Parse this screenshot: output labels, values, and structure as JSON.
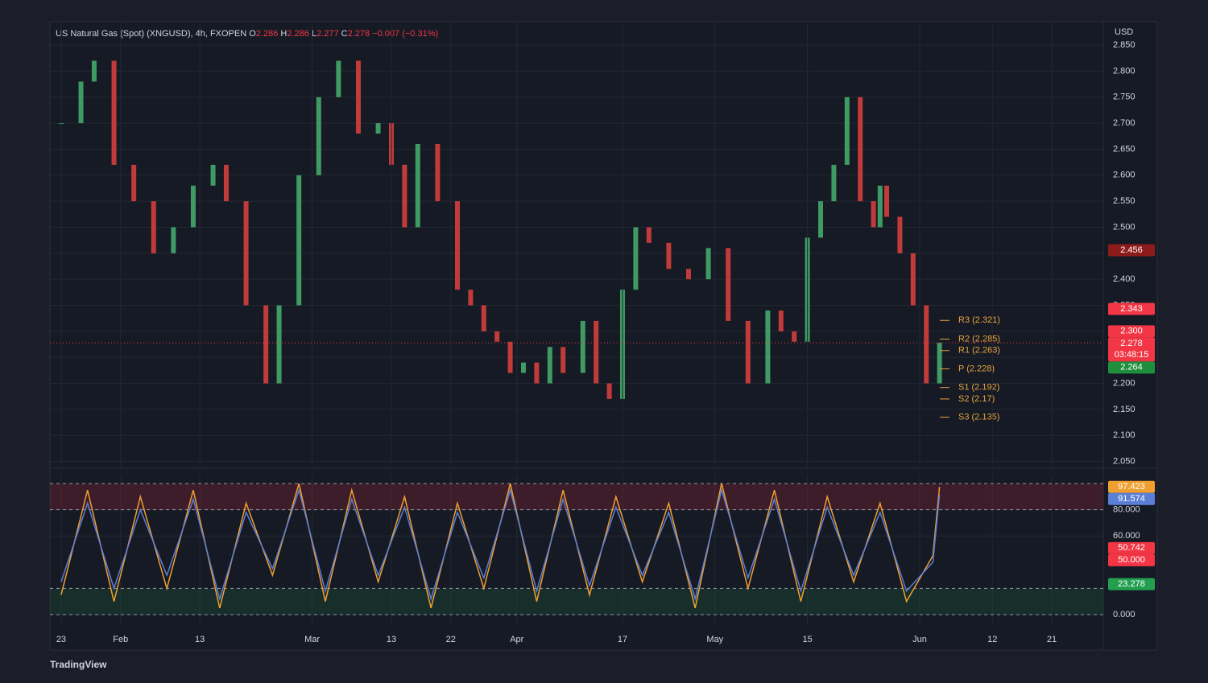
{
  "header": {
    "symbol": "US Natural Gas (Spot) (XNGUSD), 4h, FXOPEN",
    "ohlc": [
      {
        "label": "O",
        "value": 2.286
      },
      {
        "label": "H",
        "value": 2.286
      },
      {
        "label": "L",
        "value": 2.277
      },
      {
        "label": "C",
        "value": 2.278
      }
    ],
    "change": "−0.007 (−0.31%)"
  },
  "chart_data": [
    {
      "type": "candlestick",
      "currency": "USD",
      "x": [
        0,
        3,
        5,
        8,
        11,
        14,
        17,
        20,
        23,
        25,
        28,
        31,
        33,
        36,
        39,
        42,
        45,
        48,
        50,
        52,
        54,
        57,
        60,
        62,
        64,
        66,
        68,
        70,
        72,
        74,
        76,
        79,
        81,
        83,
        85,
        87,
        89,
        92,
        95,
        98,
        101,
        104,
        107,
        109,
        111,
        113,
        115,
        117,
        119,
        121,
        123,
        124,
        125,
        127,
        129,
        131,
        133
      ],
      "values": [
        2.7,
        2.78,
        2.82,
        2.62,
        2.55,
        2.45,
        2.5,
        2.58,
        2.62,
        2.55,
        2.35,
        2.2,
        2.35,
        2.6,
        2.75,
        2.82,
        2.68,
        2.7,
        2.62,
        2.5,
        2.66,
        2.55,
        2.38,
        2.35,
        2.3,
        2.28,
        2.22,
        2.24,
        2.2,
        2.27,
        2.22,
        2.32,
        2.2,
        2.17,
        2.38,
        2.5,
        2.47,
        2.42,
        2.4,
        2.46,
        2.32,
        2.2,
        2.34,
        2.3,
        2.28,
        2.48,
        2.55,
        2.62,
        2.75,
        2.55,
        2.5,
        2.58,
        2.52,
        2.45,
        2.35,
        2.2,
        2.278
      ],
      "up_color": "#3f9a63",
      "down_color": "#c23b3b",
      "xlim": [
        -1.7,
        157.8
      ],
      "ylim": [
        2.04,
        2.895
      ],
      "yticks": [
        {
          "value": 2.05,
          "label": "2.050"
        },
        {
          "value": 2.1,
          "label": "2.100"
        },
        {
          "value": 2.15,
          "label": "2.150"
        },
        {
          "value": 2.2,
          "label": "2.200"
        },
        {
          "value": 2.25,
          "label": "2.250"
        },
        {
          "value": 2.3,
          "label": "2.300"
        },
        {
          "value": 2.35,
          "label": "2.350"
        },
        {
          "value": 2.4,
          "label": "2.400"
        },
        {
          "value": 2.45,
          "label": "2.450"
        },
        {
          "value": 2.5,
          "label": "2.500"
        },
        {
          "value": 2.55,
          "label": "2.550"
        },
        {
          "value": 2.6,
          "label": "2.600"
        },
        {
          "value": 2.65,
          "label": "2.650"
        },
        {
          "value": 2.7,
          "label": "2.700"
        },
        {
          "value": 2.75,
          "label": "2.750"
        },
        {
          "value": 2.8,
          "label": "2.800"
        },
        {
          "value": 2.85,
          "label": "2.850"
        }
      ],
      "last_label": {
        "color": "#f23645",
        "countdown": "03:48:15"
      },
      "price_labels": [
        {
          "value": 2.456,
          "color": "#8e1b1b"
        },
        {
          "value": 2.343,
          "color": "#f23645"
        },
        {
          "value": 2.3,
          "label": "2.300",
          "color": "#f23645"
        },
        {
          "value": 2.264,
          "color": "#1f8f3e"
        }
      ],
      "pivot_color": "#e8a33d",
      "pivots": [
        {
          "value": 2.321,
          "label": "R3 (2.321)"
        },
        {
          "value": 2.285,
          "label": "R2 (2.285)"
        },
        {
          "value": 2.263,
          "label": "R1 (2.263)"
        },
        {
          "value": 2.228,
          "label": "P (2.228)"
        },
        {
          "value": 2.192,
          "label": "S1 (2.192)"
        },
        {
          "value": 2.17,
          "label": "S2 (2.17)"
        },
        {
          "value": 2.135,
          "label": "S3 (2.135)"
        }
      ]
    },
    {
      "type": "line",
      "x": [
        0,
        4,
        8,
        12,
        16,
        20,
        24,
        28,
        32,
        36,
        40,
        44,
        48,
        52,
        56,
        60,
        64,
        68,
        72,
        76,
        80,
        84,
        88,
        92,
        96,
        100,
        104,
        108,
        112,
        116,
        120,
        124,
        128,
        132,
        133
      ],
      "series": [
        {
          "color": "#f0a030",
          "values": [
            15,
            95,
            10,
            90,
            20,
            95,
            5,
            85,
            30,
            100,
            10,
            95,
            25,
            90,
            5,
            85,
            20,
            100,
            10,
            95,
            15,
            90,
            25,
            85,
            5,
            100,
            20,
            95,
            10,
            90,
            25,
            85,
            10,
            45,
            97.423
          ]
        },
        {
          "color": "#5b7fd6",
          "values": [
            25,
            85,
            20,
            80,
            30,
            88,
            12,
            78,
            35,
            95,
            18,
            88,
            30,
            82,
            12,
            78,
            28,
            95,
            18,
            88,
            22,
            82,
            30,
            78,
            12,
            95,
            28,
            88,
            18,
            82,
            30,
            78,
            18,
            40,
            91.574
          ]
        }
      ],
      "xlim": [
        -1.7,
        157.8
      ],
      "ylim": [
        -8.6,
        106.8
      ],
      "yticks": [
        {
          "value": 0,
          "label": "0.000"
        },
        {
          "value": 60,
          "label": "60.000"
        },
        {
          "value": 80,
          "label": "80.000"
        }
      ],
      "bands": [
        {
          "from": 80,
          "to": 100,
          "color": "rgba(200,40,60,0.22)"
        },
        {
          "from": 0,
          "to": 20,
          "color": "rgba(30,140,70,0.18)"
        }
      ],
      "price_labels": [
        {
          "value": 50.742,
          "color": "#f23645"
        },
        {
          "value": 50,
          "label": "50.000",
          "color": "#f23645"
        },
        {
          "value": 23.278,
          "color": "#22a050"
        }
      ],
      "xticks": [
        {
          "value": 0,
          "label": "23"
        },
        {
          "value": 9,
          "label": "Feb"
        },
        {
          "value": 21,
          "label": "13"
        },
        {
          "value": 38,
          "label": "Mar"
        },
        {
          "value": 50,
          "label": "13"
        },
        {
          "value": 59,
          "label": "22"
        },
        {
          "value": 69,
          "label": "Apr"
        },
        {
          "value": 85,
          "label": "17"
        },
        {
          "value": 99,
          "label": "May"
        },
        {
          "value": 113,
          "label": "15"
        },
        {
          "value": 130,
          "label": "Jun"
        },
        {
          "value": 141,
          "label": "12"
        },
        {
          "value": 150,
          "label": "21"
        }
      ]
    }
  ],
  "footer": {
    "brand": "TradingView"
  }
}
